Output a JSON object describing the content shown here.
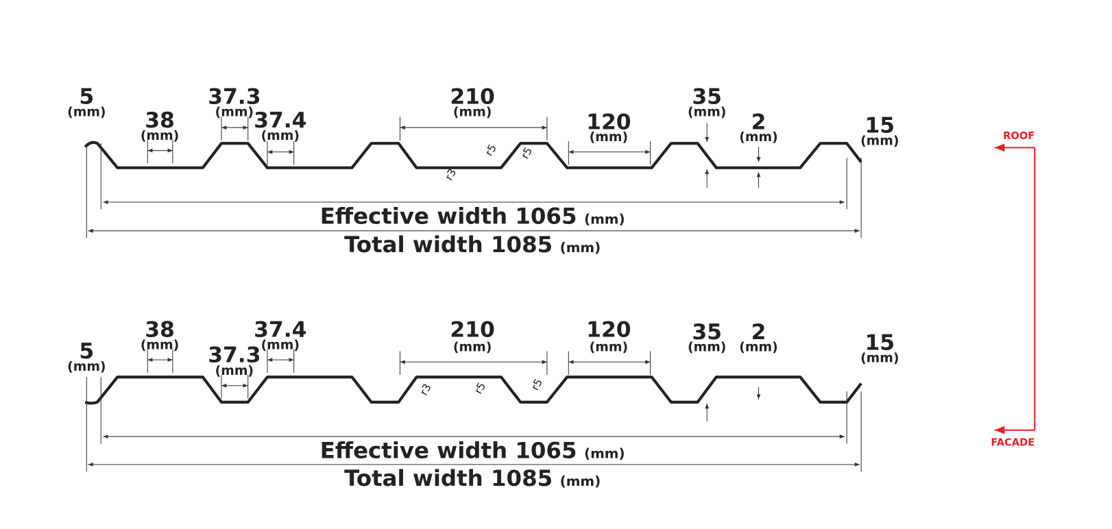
{
  "profiles": [
    {
      "dimensions": [
        {
          "value": "5",
          "unit": "(mm)"
        },
        {
          "value": "38",
          "unit": "(mm)"
        },
        {
          "value": "37.3",
          "unit": "(mm)"
        },
        {
          "value": "37.4",
          "unit": "(mm)"
        },
        {
          "value": "210",
          "unit": "(mm)"
        },
        {
          "value": "120",
          "unit": "(mm)"
        },
        {
          "value": "35",
          "unit": "(mm)"
        },
        {
          "value": "2",
          "unit": "(mm)"
        },
        {
          "value": "15",
          "unit": "(mm)"
        }
      ],
      "radii": [
        "r5",
        "r3",
        "r5"
      ],
      "effective": {
        "label": "Effective width 1065",
        "unit": "(mm)"
      },
      "total": {
        "label": "Total width 1085",
        "unit": "(mm)"
      }
    },
    {
      "dimensions": [
        {
          "value": "5",
          "unit": "(mm)"
        },
        {
          "value": "38",
          "unit": "(mm)"
        },
        {
          "value": "37.3",
          "unit": "(mm)"
        },
        {
          "value": "37.4",
          "unit": "(mm)"
        },
        {
          "value": "210",
          "unit": "(mm)"
        },
        {
          "value": "120",
          "unit": "(mm)"
        },
        {
          "value": "35",
          "unit": "(mm)"
        },
        {
          "value": "2",
          "unit": "(mm)"
        },
        {
          "value": "15",
          "unit": "(mm)"
        }
      ],
      "radii": [
        "r3",
        "r5",
        "r5"
      ],
      "effective": {
        "label": "Effective width 1065",
        "unit": "(mm)"
      },
      "total": {
        "label": "Total width 1085",
        "unit": "(mm)"
      }
    }
  ],
  "legend": {
    "roof": "ROOF",
    "facade": "FACADE"
  }
}
